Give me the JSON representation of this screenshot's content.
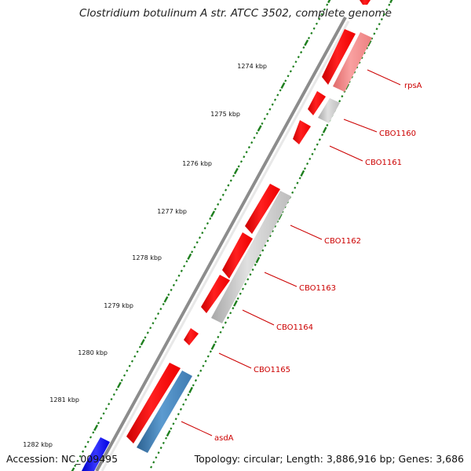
{
  "title": "Clostridium botulinum A str. ATCC 3502, complete genome",
  "footer": {
    "accession": "Accession: NC_009495",
    "summary": "Topology: circular; Length: 3,886,916 bp; Genes: 3,686"
  },
  "colors": {
    "backbone": "#8c8c8c",
    "forward_cds": "#ff0000",
    "reverse_cds": "#c0c0c0",
    "highlight_cds": "#4682b4",
    "other_cds": "#f08080",
    "tick": "#1e7f1e",
    "label_line": "#cc0000",
    "kbp_label": "#111111"
  },
  "kbp_labels": [
    "1274 kbp",
    "1275 kbp",
    "1276 kbp",
    "1277 kbp",
    "1278 kbp",
    "1279 kbp",
    "1280 kbp",
    "1281 kbp",
    "1282 kbp"
  ],
  "genes": [
    {
      "label": "rpsA"
    },
    {
      "label": "CBO1160"
    },
    {
      "label": "CBO1161"
    },
    {
      "label": "CBO1162"
    },
    {
      "label": "CBO1163"
    },
    {
      "label": "CBO1164"
    },
    {
      "label": "CBO1165"
    },
    {
      "label": "asdA"
    }
  ]
}
